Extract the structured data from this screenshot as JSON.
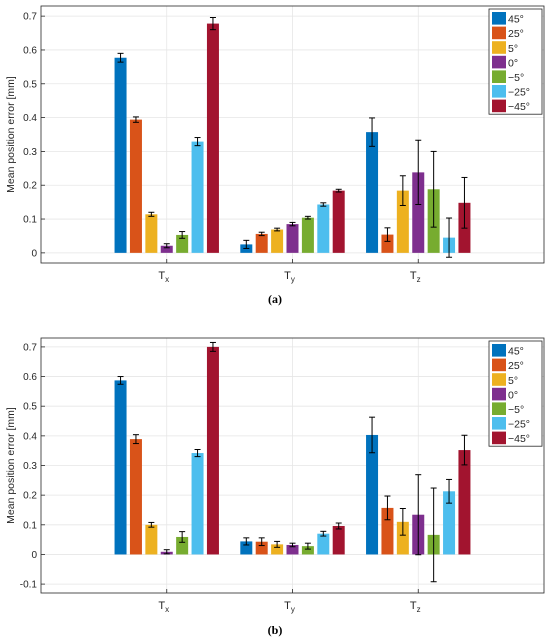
{
  "chart_data": [
    {
      "type": "bar",
      "caption": "(a)",
      "ylabel": "Mean position error [mm]",
      "ylim": [
        -0.03,
        0.73
      ],
      "yticks": [
        0,
        0.1,
        0.2,
        0.3,
        0.4,
        0.5,
        0.6,
        0.7
      ],
      "ytick_labels": [
        "0",
        "0.1",
        "0.2",
        "0.3",
        "0.4",
        "0.5",
        "0.6",
        "0.7"
      ],
      "grid": true,
      "legend_position": "top-right",
      "categories": [
        {
          "main": "T",
          "sub": "x"
        },
        {
          "main": "T",
          "sub": "y"
        },
        {
          "main": "T",
          "sub": "z"
        }
      ],
      "series": [
        {
          "name": "45°",
          "color": "#0072BD",
          "values": [
            0.577,
            0.025,
            0.357
          ],
          "errors": [
            0.013,
            0.012,
            0.042
          ]
        },
        {
          "name": "25°",
          "color": "#D95319",
          "values": [
            0.394,
            0.056,
            0.054
          ],
          "errors": [
            0.008,
            0.005,
            0.02
          ]
        },
        {
          "name": "5°",
          "color": "#EDB120",
          "values": [
            0.114,
            0.069,
            0.184
          ],
          "errors": [
            0.006,
            0.004,
            0.044
          ]
        },
        {
          "name": "0°",
          "color": "#7E2F8E",
          "values": [
            0.021,
            0.085,
            0.238
          ],
          "errors": [
            0.006,
            0.005,
            0.095
          ]
        },
        {
          "name": "−5°",
          "color": "#77AC30",
          "values": [
            0.053,
            0.104,
            0.188
          ],
          "errors": [
            0.01,
            0.004,
            0.112
          ]
        },
        {
          "name": "−25°",
          "color": "#4DBEEE",
          "values": [
            0.329,
            0.143,
            0.045
          ],
          "errors": [
            0.012,
            0.005,
            0.058
          ]
        },
        {
          "name": "−45°",
          "color": "#A2142F",
          "values": [
            0.678,
            0.184,
            0.148
          ],
          "errors": [
            0.018,
            0.004,
            0.075
          ]
        }
      ]
    },
    {
      "type": "bar",
      "caption": "(b)",
      "ylabel": "Mean position error [mm]",
      "ylim": [
        -0.13,
        0.73
      ],
      "yticks": [
        -0.1,
        0,
        0.1,
        0.2,
        0.3,
        0.4,
        0.5,
        0.6,
        0.7
      ],
      "ytick_labels": [
        "-0.1",
        "0",
        "0.1",
        "0.2",
        "0.3",
        "0.4",
        "0.5",
        "0.6",
        "0.7"
      ],
      "grid": true,
      "legend_position": "top-right",
      "categories": [
        {
          "main": "T",
          "sub": "x"
        },
        {
          "main": "T",
          "sub": "y"
        },
        {
          "main": "T",
          "sub": "z"
        }
      ],
      "series": [
        {
          "name": "45°",
          "color": "#0072BD",
          "values": [
            0.587,
            0.044,
            0.403
          ],
          "errors": [
            0.013,
            0.012,
            0.06
          ]
        },
        {
          "name": "25°",
          "color": "#D95319",
          "values": [
            0.389,
            0.043,
            0.157
          ],
          "errors": [
            0.015,
            0.013,
            0.04
          ]
        },
        {
          "name": "5°",
          "color": "#EDB120",
          "values": [
            0.1,
            0.034,
            0.11
          ],
          "errors": [
            0.008,
            0.01,
            0.045
          ]
        },
        {
          "name": "0°",
          "color": "#7E2F8E",
          "values": [
            0.009,
            0.032,
            0.134
          ],
          "errors": [
            0.007,
            0.006,
            0.135
          ]
        },
        {
          "name": "−5°",
          "color": "#77AC30",
          "values": [
            0.059,
            0.028,
            0.066
          ],
          "errors": [
            0.018,
            0.01,
            0.158
          ]
        },
        {
          "name": "−25°",
          "color": "#4DBEEE",
          "values": [
            0.342,
            0.07,
            0.213
          ],
          "errors": [
            0.012,
            0.008,
            0.04
          ]
        },
        {
          "name": "−45°",
          "color": "#A2142F",
          "values": [
            0.7,
            0.096,
            0.352
          ],
          "errors": [
            0.015,
            0.01,
            0.05
          ]
        }
      ]
    }
  ]
}
